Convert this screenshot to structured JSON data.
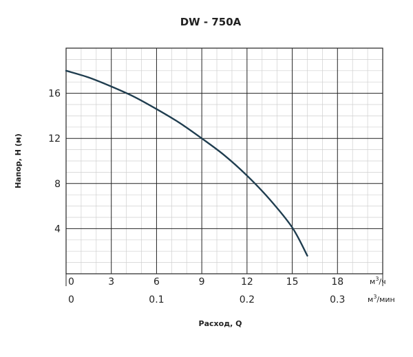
{
  "chart_data": {
    "type": "line",
    "title": "DW - 750A",
    "xlabel": "Расход, Q",
    "ylabel": "Напор, Н (м)",
    "y_ticks": [
      "4",
      "8",
      "12",
      "16"
    ],
    "ylim": [
      0,
      20
    ],
    "x_axis_primary": {
      "ticks": [
        "0",
        "3",
        "6",
        "9",
        "12",
        "15",
        "18"
      ],
      "unit_prefix": "м",
      "unit_sup": "3",
      "unit_suffix": "/ч"
    },
    "x_axis_secondary": {
      "ticks": [
        "0",
        "0.1",
        "0.2",
        "0.3"
      ],
      "unit_prefix": "м",
      "unit_sup": "3",
      "unit_suffix": "/мин"
    },
    "xlim": [
      0,
      21
    ],
    "grid": true,
    "series": [
      {
        "color": "#1f3d4f",
        "x": [
          0,
          1.5,
          3,
          4.5,
          6,
          7.5,
          9,
          10.5,
          12,
          13.5,
          15,
          16
        ],
        "y": [
          18.0,
          17.4,
          16.6,
          15.7,
          14.6,
          13.4,
          12.0,
          10.5,
          8.7,
          6.6,
          4.1,
          1.6
        ]
      }
    ]
  }
}
